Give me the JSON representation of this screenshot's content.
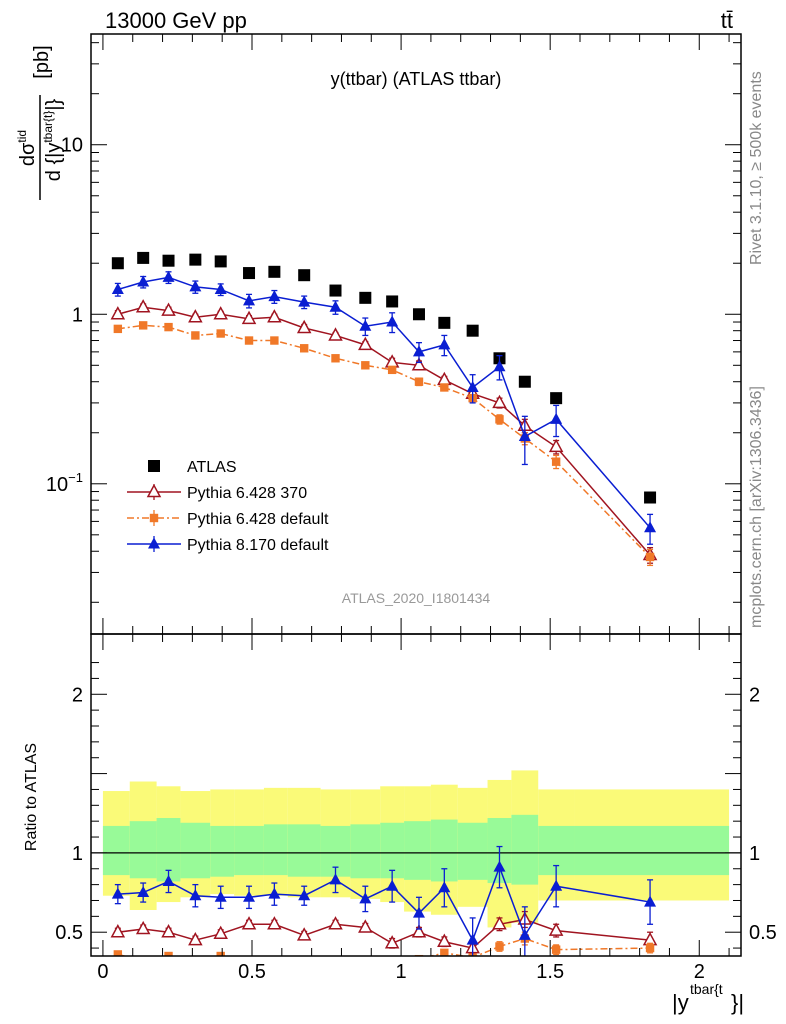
{
  "header": {
    "left": "13000 GeV pp",
    "right": "tt̄"
  },
  "side_labels": {
    "rivet": "Rivet 3.1.10, ≥ 500k events",
    "mcplots": "mcplots.cern.ch [arXiv:1306.3436]"
  },
  "chart_data": [
    {
      "type": "scatter",
      "title": "y(ttbar) (ATLAS ttbar)",
      "analysis_id": "ATLAS_2020_I1801434",
      "ylabel": "dσ^tid / d {|y^tbar{t}|} [pb]",
      "yscale": "log",
      "ylim": [
        0.013,
        45
      ],
      "xlim": [
        -0.04,
        2.14
      ],
      "y_tick_labels": [
        {
          "value": 0.1,
          "base": "10",
          "exp": "−1"
        },
        {
          "value": 1,
          "text": "1"
        },
        {
          "value": 10,
          "text": "10"
        }
      ],
      "legend_position": "middle-left",
      "series": [
        {
          "name": "ATLAS",
          "color": "#000000",
          "marker": "square",
          "x": [
            0.05,
            0.135,
            0.22,
            0.31,
            0.395,
            0.49,
            0.575,
            0.675,
            0.78,
            0.88,
            0.97,
            1.06,
            1.145,
            1.24,
            1.33,
            1.415,
            1.52,
            1.835
          ],
          "y": [
            2.0,
            2.15,
            2.07,
            2.1,
            2.05,
            1.75,
            1.78,
            1.7,
            1.38,
            1.25,
            1.19,
            1.0,
            0.89,
            0.8,
            0.55,
            0.4,
            0.32,
            0.083
          ]
        },
        {
          "name": "Pythia 6.428 370",
          "color": "#a01420",
          "marker": "open-triangle",
          "line": "solid",
          "x": [
            0.05,
            0.135,
            0.22,
            0.31,
            0.395,
            0.49,
            0.575,
            0.675,
            0.78,
            0.88,
            0.97,
            1.06,
            1.145,
            1.24,
            1.33,
            1.415,
            1.52,
            1.835
          ],
          "y": [
            1.0,
            1.1,
            1.05,
            0.96,
            1.0,
            0.94,
            0.96,
            0.83,
            0.75,
            0.66,
            0.52,
            0.5,
            0.41,
            0.34,
            0.3,
            0.22,
            0.165,
            0.038
          ],
          "yerr": [
            0.05,
            0.05,
            0.05,
            0.04,
            0.04,
            0.04,
            0.04,
            0.04,
            0.03,
            0.03,
            0.03,
            0.03,
            0.02,
            0.02,
            0.02,
            0.02,
            0.015,
            0.004
          ]
        },
        {
          "name": "Pythia 6.428 default",
          "color": "#f07828",
          "marker": "filled-square-small",
          "line": "dashdot",
          "x": [
            0.05,
            0.135,
            0.22,
            0.31,
            0.395,
            0.49,
            0.575,
            0.675,
            0.78,
            0.88,
            0.97,
            1.06,
            1.145,
            1.24,
            1.33,
            1.415,
            1.52,
            1.835
          ],
          "y": [
            0.82,
            0.86,
            0.84,
            0.75,
            0.77,
            0.7,
            0.7,
            0.63,
            0.55,
            0.5,
            0.47,
            0.4,
            0.37,
            0.32,
            0.24,
            0.185,
            0.135,
            0.037
          ],
          "yerr": [
            0.03,
            0.03,
            0.03,
            0.03,
            0.03,
            0.03,
            0.03,
            0.02,
            0.02,
            0.02,
            0.02,
            0.02,
            0.015,
            0.015,
            0.015,
            0.015,
            0.012,
            0.004
          ]
        },
        {
          "name": "Pythia 8.170 default",
          "color": "#0a1ed2",
          "marker": "filled-triangle",
          "line": "solid",
          "x": [
            0.05,
            0.135,
            0.22,
            0.31,
            0.395,
            0.49,
            0.575,
            0.675,
            0.78,
            0.88,
            0.97,
            1.06,
            1.145,
            1.24,
            1.33,
            1.415,
            1.52,
            1.835
          ],
          "y": [
            1.4,
            1.55,
            1.65,
            1.45,
            1.4,
            1.2,
            1.27,
            1.18,
            1.1,
            0.85,
            0.9,
            0.6,
            0.66,
            0.37,
            0.49,
            0.19,
            0.24,
            0.055
          ],
          "yerr": [
            0.12,
            0.12,
            0.13,
            0.12,
            0.11,
            0.11,
            0.11,
            0.1,
            0.1,
            0.1,
            0.12,
            0.08,
            0.09,
            0.07,
            0.08,
            0.06,
            0.05,
            0.011
          ]
        }
      ]
    },
    {
      "type": "scatter",
      "ylabel": "Ratio to ATLAS",
      "xlabel": "|y^tbar{t}|",
      "ylim": [
        0.35,
        2.38
      ],
      "xlim": [
        -0.04,
        2.14
      ],
      "x_tick_labels": [
        "0",
        "0.5",
        "1",
        "1.5",
        "2"
      ],
      "y_tick_labels": [
        "0.5",
        "1",
        "2"
      ],
      "reference_line": 1,
      "bands": {
        "bins": [
          0.0,
          0.09,
          0.18,
          0.26,
          0.36,
          0.44,
          0.54,
          0.62,
          0.73,
          0.83,
          0.93,
          1.01,
          1.1,
          1.19,
          1.29,
          1.37,
          1.46,
          1.58,
          2.1
        ],
        "inner_color": "#98fa98",
        "inner_lo": [
          0.86,
          0.84,
          0.82,
          0.84,
          0.85,
          0.86,
          0.86,
          0.85,
          0.85,
          0.84,
          0.84,
          0.83,
          0.82,
          0.83,
          0.81,
          0.8,
          0.86,
          0.86
        ],
        "inner_hi": [
          1.17,
          1.2,
          1.22,
          1.19,
          1.17,
          1.17,
          1.18,
          1.18,
          1.17,
          1.18,
          1.19,
          1.2,
          1.21,
          1.19,
          1.22,
          1.24,
          1.17,
          1.17
        ],
        "outer_color": "#fafa78",
        "outer_lo": [
          0.73,
          0.64,
          0.69,
          0.72,
          0.74,
          0.73,
          0.73,
          0.72,
          0.72,
          0.71,
          0.69,
          0.63,
          0.61,
          0.66,
          0.53,
          0.56,
          0.7,
          0.7
        ],
        "outer_hi": [
          1.39,
          1.45,
          1.42,
          1.39,
          1.4,
          1.4,
          1.41,
          1.41,
          1.4,
          1.4,
          1.42,
          1.42,
          1.43,
          1.41,
          1.46,
          1.52,
          1.4,
          1.4
        ]
      },
      "series": [
        {
          "name": "Pythia 6.428 370",
          "color": "#a01420",
          "marker": "open-triangle",
          "line": "solid",
          "x": [
            0.05,
            0.135,
            0.22,
            0.31,
            0.395,
            0.49,
            0.575,
            0.675,
            0.78,
            0.88,
            0.97,
            1.06,
            1.145,
            1.24,
            1.33,
            1.415,
            1.52,
            1.835
          ],
          "y": [
            0.5,
            0.52,
            0.5,
            0.45,
            0.49,
            0.55,
            0.55,
            0.48,
            0.55,
            0.53,
            0.43,
            0.5,
            0.44,
            0.4,
            0.55,
            0.58,
            0.51,
            0.45
          ],
          "yerr": [
            0.025,
            0.025,
            0.025,
            0.025,
            0.025,
            0.025,
            0.025,
            0.025,
            0.025,
            0.025,
            0.03,
            0.03,
            0.03,
            0.03,
            0.04,
            0.05,
            0.04,
            0.05
          ]
        },
        {
          "name": "Pythia 6.428 default",
          "color": "#f07828",
          "marker": "filled-square-small",
          "line": "dashdot",
          "x": [
            0.05,
            0.135,
            0.22,
            0.31,
            0.395,
            0.49,
            0.575,
            0.675,
            0.78,
            0.88,
            0.97,
            1.06,
            1.145,
            1.24,
            1.33,
            1.415,
            1.52,
            1.835
          ],
          "y": [
            0.36,
            0.32,
            0.35,
            0.29,
            0.35,
            0.31,
            0.3,
            0.3,
            0.3,
            0.31,
            0.3,
            0.33,
            0.37,
            0.34,
            0.41,
            0.46,
            0.39,
            0.4
          ],
          "yerr": [
            0.02,
            0.02,
            0.02,
            0.02,
            0.02,
            0.02,
            0.02,
            0.02,
            0.02,
            0.02,
            0.02,
            0.02,
            0.02,
            0.02,
            0.03,
            0.04,
            0.03,
            0.03
          ]
        },
        {
          "name": "Pythia 8.170 default",
          "color": "#0a1ed2",
          "marker": "filled-triangle",
          "line": "solid",
          "x": [
            0.05,
            0.135,
            0.22,
            0.31,
            0.395,
            0.49,
            0.575,
            0.675,
            0.78,
            0.88,
            0.97,
            1.06,
            1.145,
            1.24,
            1.33,
            1.415,
            1.52,
            1.835
          ],
          "y": [
            0.74,
            0.75,
            0.82,
            0.73,
            0.72,
            0.72,
            0.74,
            0.73,
            0.83,
            0.71,
            0.79,
            0.62,
            0.78,
            0.45,
            0.91,
            0.48,
            0.79,
            0.69
          ],
          "yerr": [
            0.06,
            0.06,
            0.07,
            0.07,
            0.07,
            0.07,
            0.07,
            0.06,
            0.08,
            0.08,
            0.1,
            0.1,
            0.12,
            0.14,
            0.13,
            0.18,
            0.13,
            0.14
          ]
        }
      ]
    }
  ]
}
